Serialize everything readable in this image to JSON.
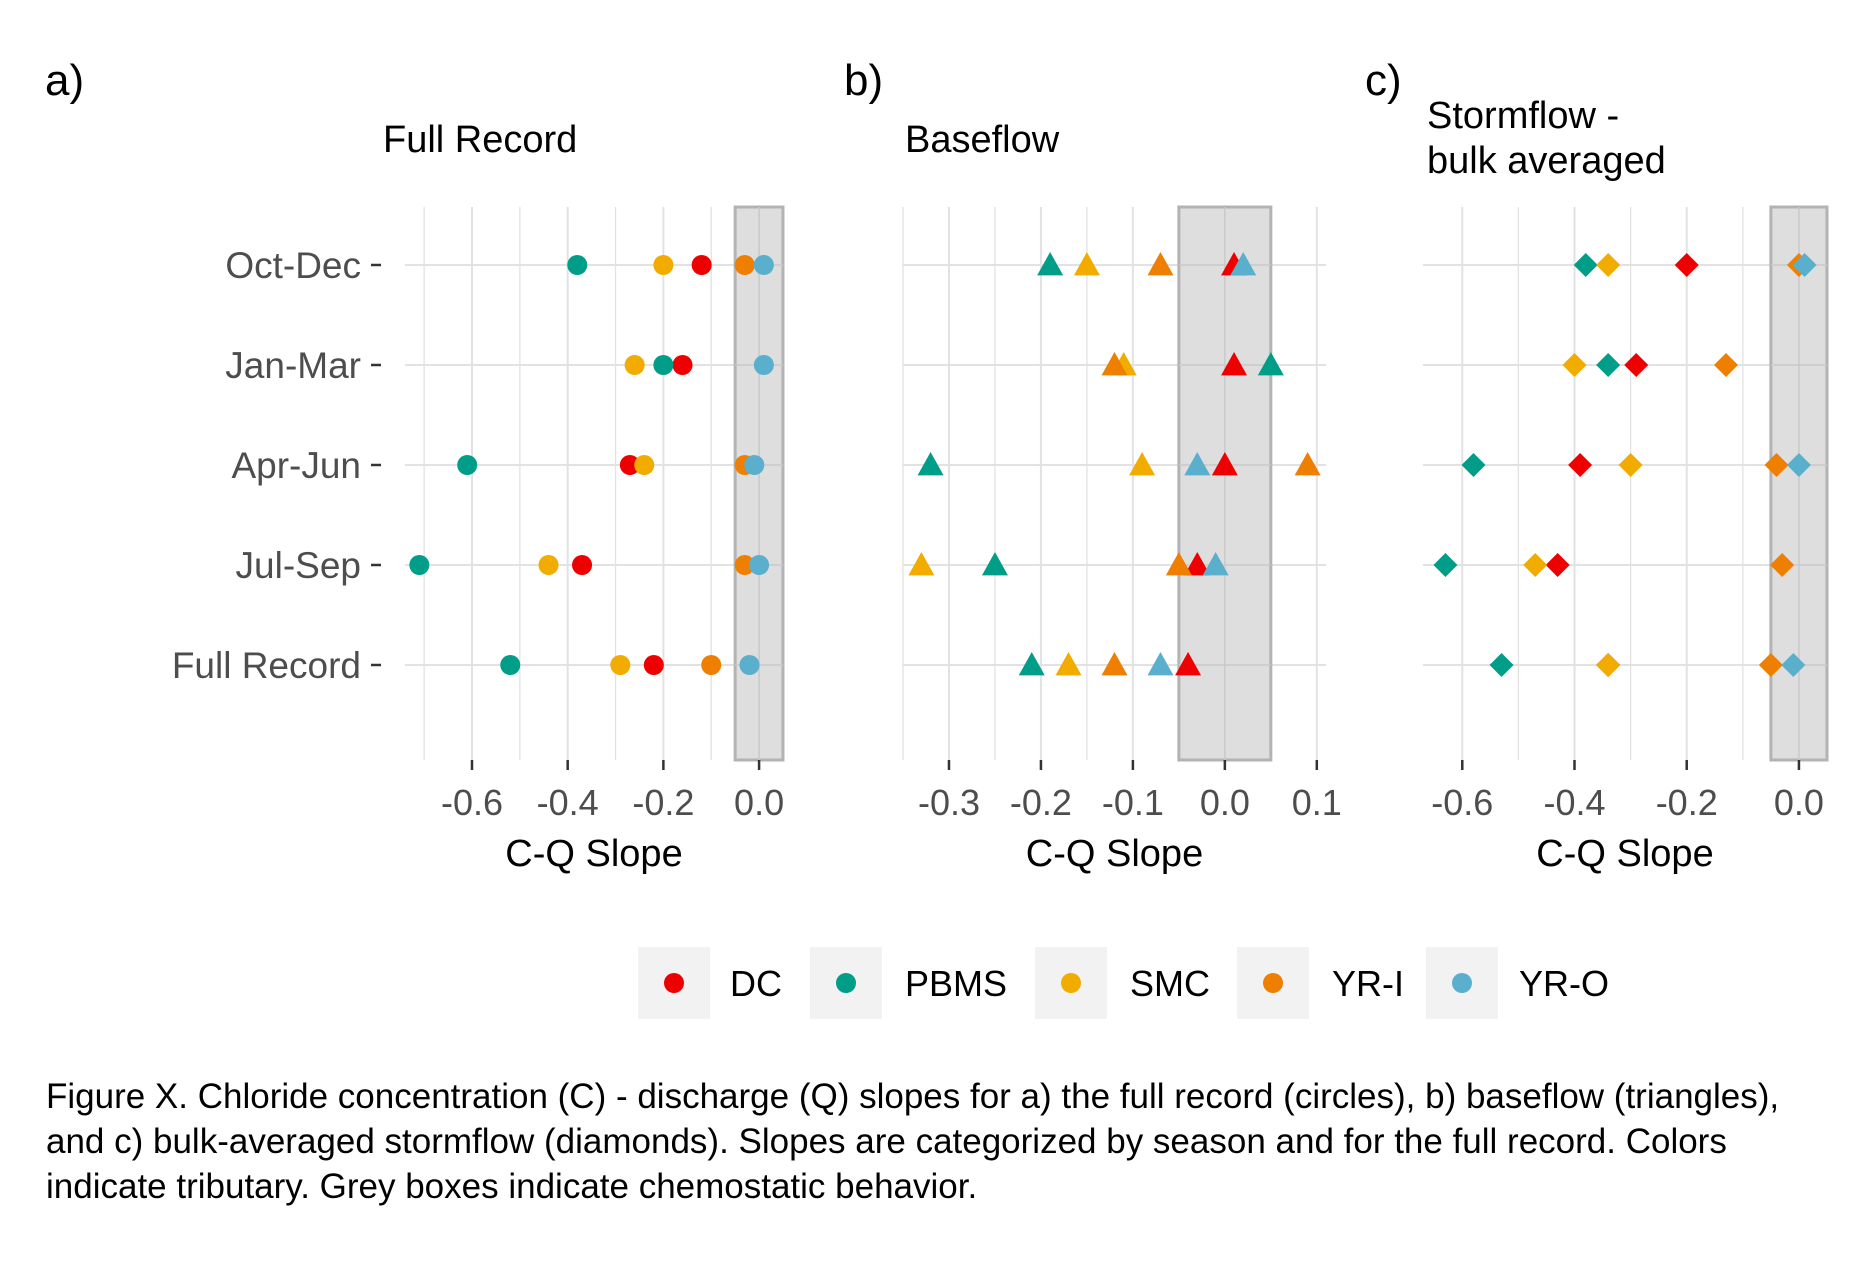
{
  "chart_data": [
    {
      "type": "scatter",
      "panel_letter": "a)",
      "title": "Full Record",
      "xlabel": "C-Q Slope",
      "ylabel": "",
      "categories": [
        "Oct-Dec",
        "Jan-Mar",
        "Apr-Jun",
        "Jul-Sep",
        "Full Record"
      ],
      "xlim": [
        -0.74,
        0.05
      ],
      "xticks": [
        -0.6,
        -0.4,
        -0.2,
        0.0
      ],
      "xtick_labels": [
        "-0.6",
        "-0.4",
        "-0.2",
        "0.0"
      ],
      "marker": "circle",
      "chemostatic_band": [
        -0.05,
        0.05
      ],
      "grid": true,
      "series": [
        {
          "name": "DC",
          "values": [
            -0.12,
            -0.16,
            -0.27,
            -0.37,
            -0.22
          ]
        },
        {
          "name": "PBMS",
          "values": [
            -0.38,
            -0.2,
            -0.61,
            -0.71,
            -0.52
          ]
        },
        {
          "name": "SMC",
          "values": [
            -0.2,
            -0.26,
            -0.24,
            -0.44,
            -0.29
          ]
        },
        {
          "name": "YR-I",
          "values": [
            -0.03,
            null,
            -0.03,
            -0.03,
            -0.1
          ]
        },
        {
          "name": "YR-O",
          "values": [
            0.01,
            0.01,
            -0.01,
            0.0,
            -0.02
          ]
        }
      ]
    },
    {
      "type": "scatter",
      "panel_letter": "b)",
      "title": "Baseflow",
      "xlabel": "C-Q Slope",
      "ylabel": "",
      "categories": [
        "Oct-Dec",
        "Jan-Mar",
        "Apr-Jun",
        "Jul-Sep",
        "Full Record"
      ],
      "xlim": [
        -0.35,
        0.11
      ],
      "xticks": [
        -0.3,
        -0.2,
        -0.1,
        0.0,
        0.1
      ],
      "xtick_labels": [
        "-0.3",
        "-0.2",
        "-0.1",
        "0.0",
        "0.1"
      ],
      "marker": "triangle",
      "chemostatic_band": [
        -0.05,
        0.05
      ],
      "grid": true,
      "series": [
        {
          "name": "DC",
          "values": [
            0.01,
            0.01,
            0.0,
            -0.03,
            -0.04
          ]
        },
        {
          "name": "PBMS",
          "values": [
            -0.19,
            0.05,
            -0.32,
            -0.25,
            -0.21
          ]
        },
        {
          "name": "SMC",
          "values": [
            -0.15,
            -0.11,
            -0.09,
            -0.33,
            -0.17
          ]
        },
        {
          "name": "YR-I",
          "values": [
            -0.07,
            -0.12,
            0.09,
            -0.05,
            -0.12
          ]
        },
        {
          "name": "YR-O",
          "values": [
            0.02,
            null,
            -0.03,
            -0.01,
            -0.07
          ]
        }
      ]
    },
    {
      "type": "scatter",
      "panel_letter": "c)",
      "title": "Stormflow -\nbulk averaged",
      "title_lines": [
        "Stormflow -",
        "bulk averaged"
      ],
      "xlabel": "C-Q Slope",
      "ylabel": "",
      "categories": [
        "Oct-Dec",
        "Jan-Mar",
        "Apr-Jun",
        "Jul-Sep",
        "Full Record"
      ],
      "xlim": [
        -0.67,
        0.05
      ],
      "xticks": [
        -0.6,
        -0.4,
        -0.2,
        0.0
      ],
      "xtick_labels": [
        "-0.6",
        "-0.4",
        "-0.2",
        "0.0"
      ],
      "marker": "diamond",
      "chemostatic_band": [
        -0.05,
        0.05
      ],
      "grid": true,
      "series": [
        {
          "name": "DC",
          "values": [
            -0.2,
            -0.29,
            -0.39,
            -0.43,
            -0.34
          ]
        },
        {
          "name": "PBMS",
          "values": [
            -0.38,
            -0.34,
            -0.58,
            -0.63,
            -0.53
          ]
        },
        {
          "name": "SMC",
          "values": [
            -0.34,
            -0.4,
            -0.3,
            -0.47,
            -0.34
          ]
        },
        {
          "name": "YR-I",
          "values": [
            0.0,
            -0.13,
            -0.04,
            -0.03,
            -0.05
          ]
        },
        {
          "name": "YR-O",
          "values": [
            0.01,
            null,
            0.0,
            null,
            -0.01
          ]
        }
      ]
    }
  ],
  "legend": {
    "position": "bottom",
    "items": [
      {
        "label": "DC",
        "color": "#ee0000"
      },
      {
        "label": "PBMS",
        "color": "#009e88"
      },
      {
        "label": "SMC",
        "color": "#f2ac00"
      },
      {
        "label": "YR-I",
        "color": "#ef7f00"
      },
      {
        "label": "YR-O",
        "color": "#5aafcd"
      }
    ]
  },
  "colors": {
    "DC": "#ee0000",
    "PBMS": "#009e88",
    "SMC": "#f2ac00",
    "YR-I": "#ef7f00",
    "YR-O": "#5aafcd",
    "chemostatic_band_fill": "#dedede",
    "chemostatic_band_stroke": "#b3b3b3",
    "grid": "#e2e2e2",
    "legend_key_bg": "#f2f2f2"
  },
  "caption": "Figure X. Chloride concentration (C) - discharge (Q) slopes for a) the full record (circles), b) baseflow (triangles), and c) bulk-averaged stormflow (diamonds). Slopes are categorized by season and for the full record. Colors indicate tributary. Grey boxes indicate chemostatic behavior."
}
